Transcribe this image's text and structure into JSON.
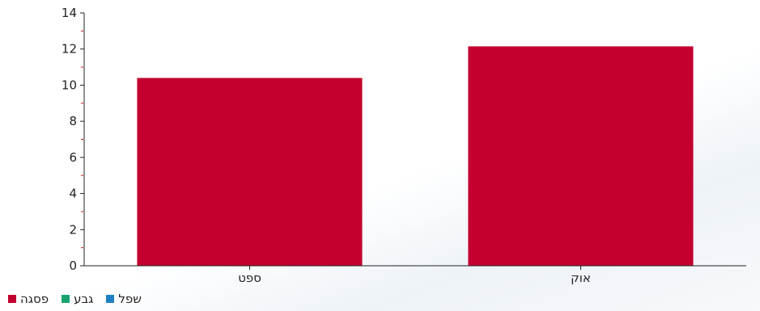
{
  "chart_data": {
    "type": "bar",
    "categories": [
      "ספט",
      "אוק"
    ],
    "series": [
      {
        "name": "פסגה",
        "color": "#c3002f",
        "values": [
          10.4,
          12.15
        ]
      },
      {
        "name": "גבע",
        "color": "#1aa36f",
        "values": [
          0,
          0
        ]
      },
      {
        "name": "שפל",
        "color": "#1f7fc2",
        "values": [
          0,
          0
        ]
      }
    ],
    "ylim": [
      0,
      14
    ],
    "yticks": [
      "0",
      "2",
      "4",
      "6",
      "8",
      "10",
      "12",
      "14"
    ],
    "grid": false,
    "legend_position": "bottom-left"
  }
}
